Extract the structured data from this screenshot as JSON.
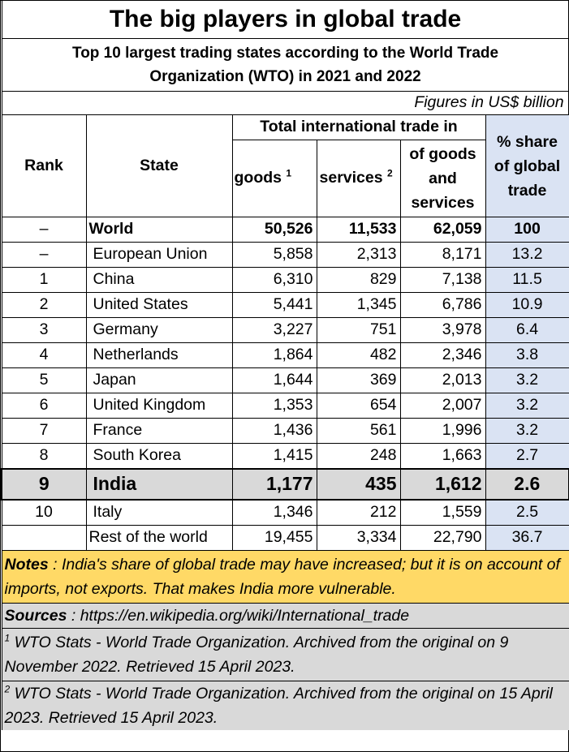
{
  "title": "The big players in global trade",
  "subtitle_line1": "Top 10 largest trading states according to the World Trade",
  "subtitle_line2": "Organization (WTO) in 2021 and 2022",
  "units": "Figures in US$ billion",
  "headers": {
    "rank": "Rank",
    "state": "State",
    "total_trade": "Total international trade in",
    "goods": "goods",
    "goods_sup": "1",
    "services": "services",
    "services_sup": "2",
    "goods_and_services_1": "of goods",
    "goods_and_services_2": "and",
    "goods_and_services_3": "services",
    "share_1": "% share",
    "share_2": "of global",
    "share_3": "trade"
  },
  "rows": [
    {
      "rank": "–",
      "state": "World",
      "goods": "50,526",
      "services": "11,533",
      "total": "62,059",
      "share": "100"
    },
    {
      "rank": "–",
      "state": "European Union",
      "goods": "5,858",
      "services": "2,313",
      "total": "8,171",
      "share": "13.2"
    },
    {
      "rank": "1",
      "state": "China",
      "goods": "6,310",
      "services": "829",
      "total": "7,138",
      "share": "11.5"
    },
    {
      "rank": "2",
      "state": "United States",
      "goods": "5,441",
      "services": "1,345",
      "total": "6,786",
      "share": "10.9"
    },
    {
      "rank": "3",
      "state": "Germany",
      "goods": "3,227",
      "services": "751",
      "total": "3,978",
      "share": "6.4"
    },
    {
      "rank": "4",
      "state": "Netherlands",
      "goods": "1,864",
      "services": "482",
      "total": "2,346",
      "share": "3.8"
    },
    {
      "rank": "5",
      "state": "Japan",
      "goods": "1,644",
      "services": "369",
      "total": "2,013",
      "share": "3.2"
    },
    {
      "rank": "6",
      "state": "United Kingdom",
      "goods": "1,353",
      "services": "654",
      "total": "2,007",
      "share": "3.2"
    },
    {
      "rank": "7",
      "state": "France",
      "goods": "1,436",
      "services": "561",
      "total": "1,996",
      "share": "3.2"
    },
    {
      "rank": "8",
      "state": "South Korea",
      "goods": "1,415",
      "services": "248",
      "total": "1,663",
      "share": "2.7"
    },
    {
      "rank": "9",
      "state": "India",
      "goods": "1,177",
      "services": "435",
      "total": "1,612",
      "share": "2.6"
    },
    {
      "rank": "10",
      "state": "Italy",
      "goods": "1,346",
      "services": "212",
      "total": "1,559",
      "share": "2.5"
    },
    {
      "rank": "",
      "state": "Rest of the world",
      "goods": "19,455",
      "services": "3,334",
      "total": "22,790",
      "share": "36.7"
    }
  ],
  "notes": {
    "label": "Notes",
    "text": " : India's share of global trade may have increased; but it is on account of imports, not exports.  That makes India more vulnerable."
  },
  "sources": {
    "label": "Sources",
    "text": " : https://en.wikipedia.org/wiki/International_trade"
  },
  "footnotes": [
    {
      "mark": "1",
      "text": " WTO Stats - World Trade Organization. Archived from the original on 9 November 2022. Retrieved 15 April 2023."
    },
    {
      "mark": "2",
      "text": " WTO Stats - World Trade Organization. Archived from the original on 15 April 2023. Retrieved 15 April 2023."
    }
  ],
  "colors": {
    "share_column": "#dae3f3",
    "india_row": "#d9d9d9",
    "notes_bg": "#ffd966",
    "footer_bg": "#d9d9d9"
  }
}
